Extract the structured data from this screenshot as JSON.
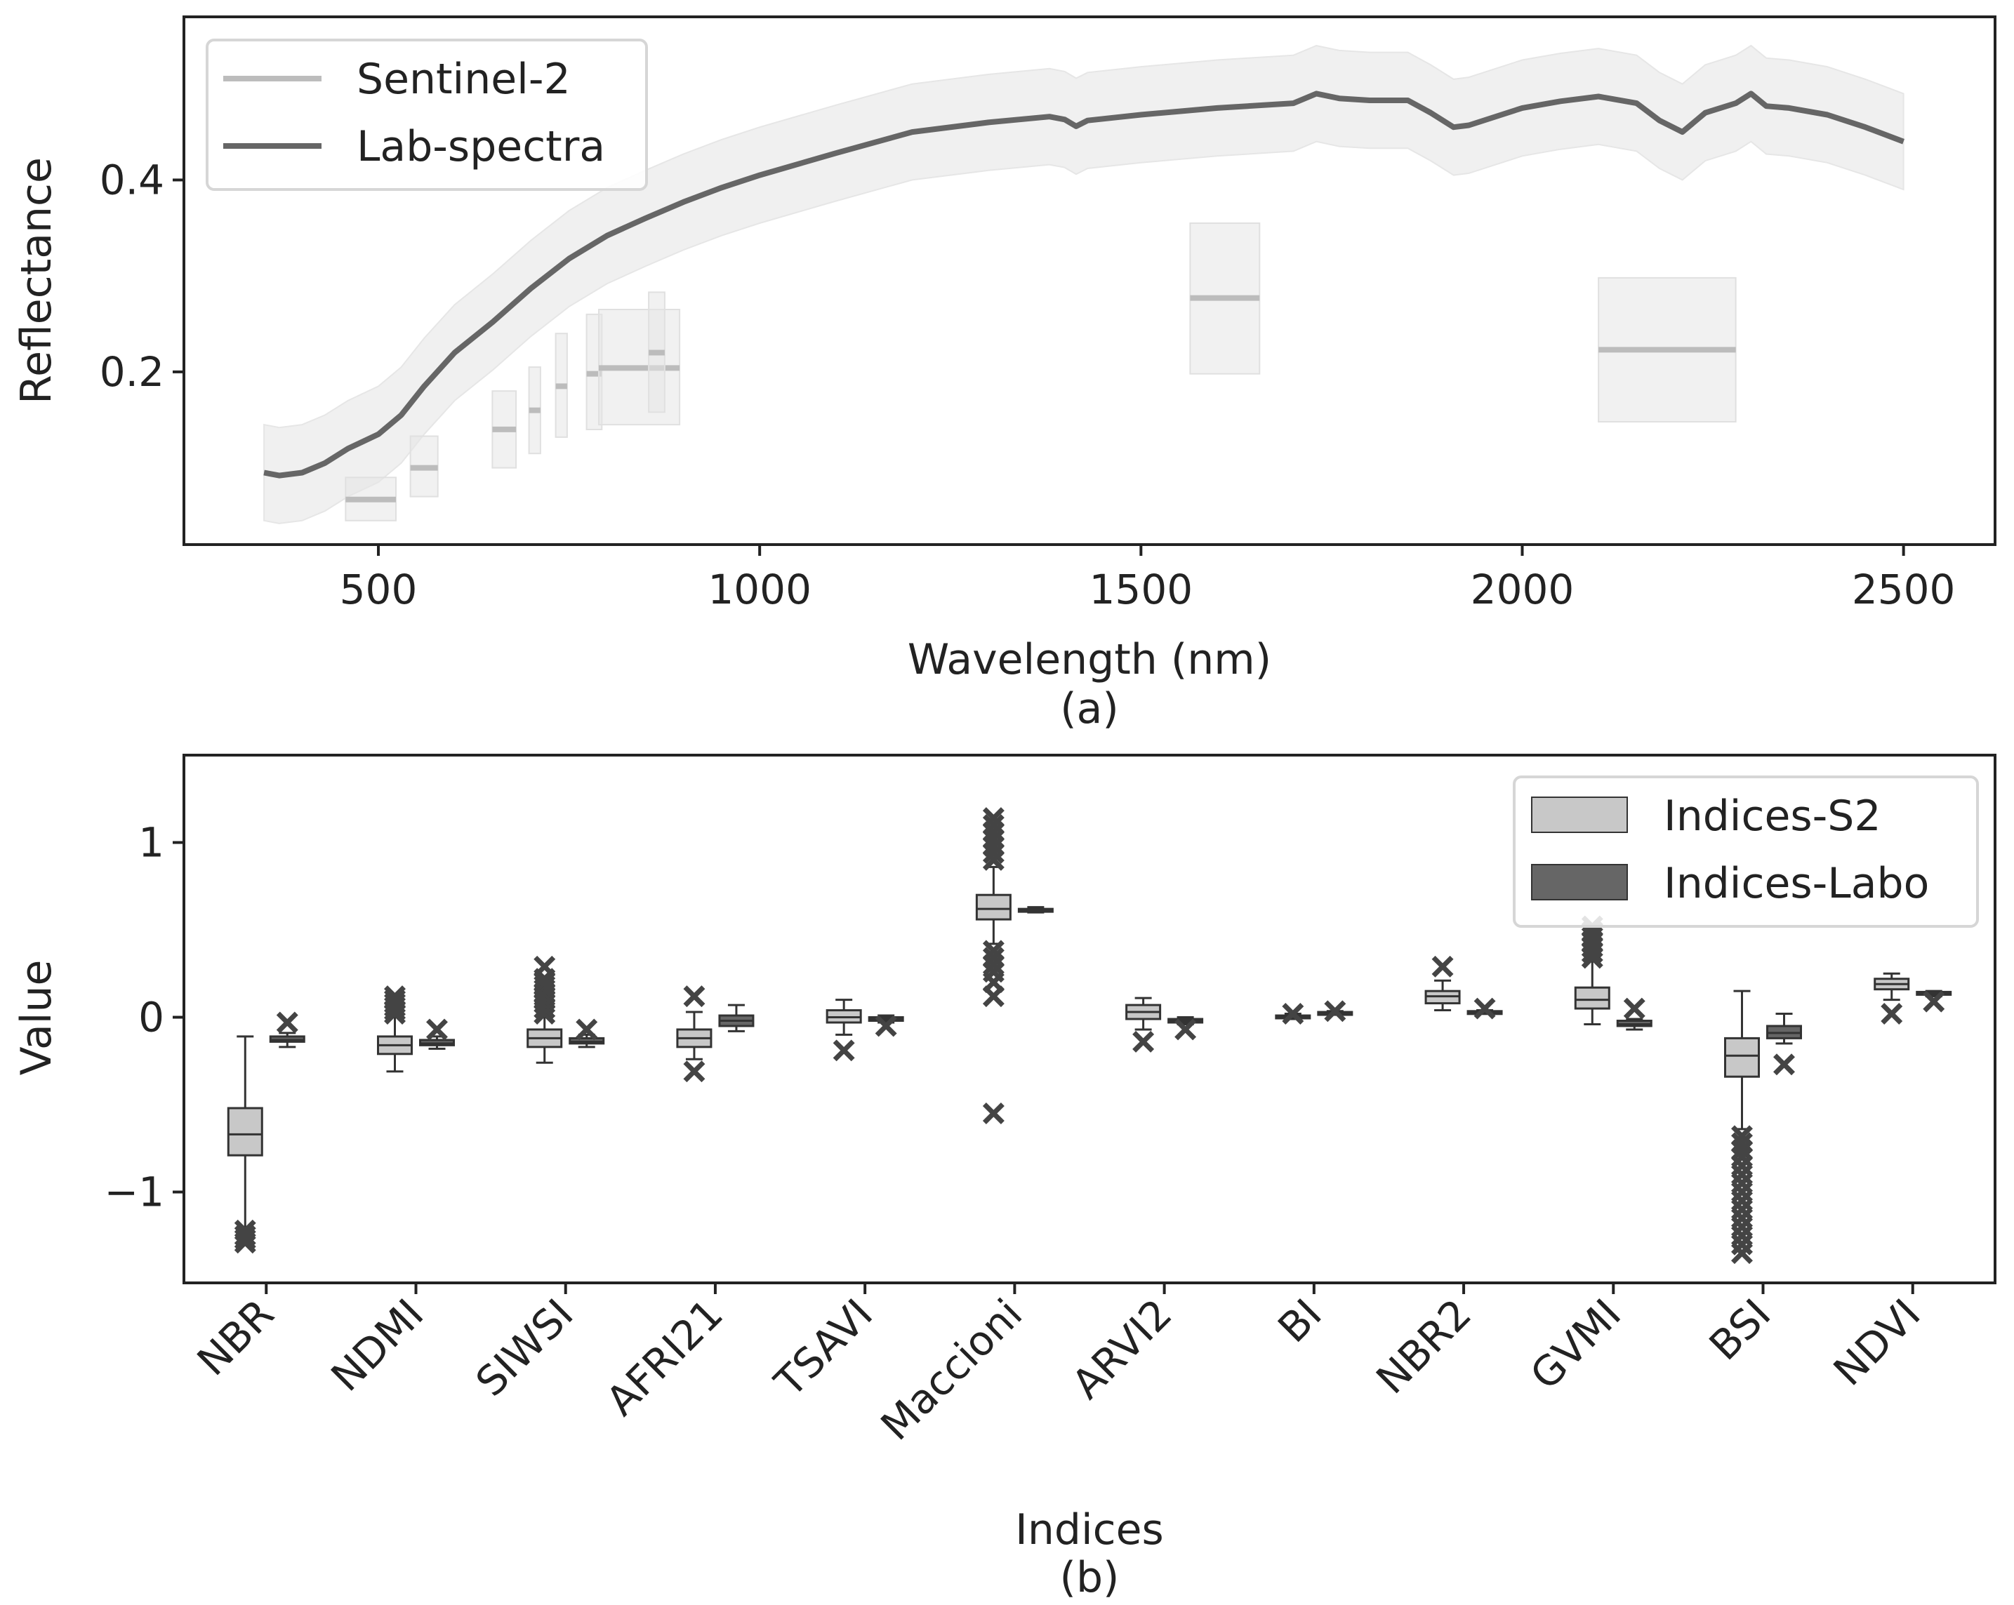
{
  "chart_data": [
    {
      "type": "line",
      "panel_label": "(a)",
      "xlabel": "Wavelength (nm)",
      "ylabel": "Reflectance",
      "xlim": [
        245,
        2620
      ],
      "ylim": [
        0.02,
        0.57
      ],
      "x_ticks": [
        500,
        1000,
        1500,
        2000,
        2500
      ],
      "x_tick_labels": [
        "500",
        "1000",
        "1500",
        "2000",
        "2500"
      ],
      "y_ticks": [
        0.2,
        0.4
      ],
      "y_tick_labels": [
        "0.2",
        "0.4"
      ],
      "legend": {
        "position": "top-left",
        "entries": [
          {
            "label": "Sentinel-2",
            "color": "#bcbcbc"
          },
          {
            "label": "Lab-spectra",
            "color": "#666666"
          }
        ]
      },
      "lab_spectra": {
        "name": "Lab-spectra",
        "color": "#666666",
        "band_color": "#f0f0f0",
        "band_halfwidth": 0.05,
        "x": [
          350,
          370,
          400,
          430,
          460,
          500,
          530,
          560,
          600,
          650,
          700,
          750,
          800,
          850,
          900,
          950,
          1000,
          1100,
          1200,
          1300,
          1380,
          1400,
          1415,
          1430,
          1500,
          1600,
          1700,
          1730,
          1760,
          1800,
          1850,
          1880,
          1910,
          1930,
          2000,
          2050,
          2100,
          2150,
          2180,
          2210,
          2240,
          2280,
          2300,
          2320,
          2350,
          2400,
          2450,
          2500
        ],
        "y": [
          0.095,
          0.092,
          0.095,
          0.105,
          0.12,
          0.135,
          0.155,
          0.185,
          0.22,
          0.252,
          0.287,
          0.318,
          0.342,
          0.36,
          0.377,
          0.392,
          0.405,
          0.428,
          0.45,
          0.46,
          0.466,
          0.463,
          0.456,
          0.462,
          0.468,
          0.475,
          0.48,
          0.49,
          0.485,
          0.483,
          0.483,
          0.47,
          0.455,
          0.457,
          0.475,
          0.482,
          0.487,
          0.48,
          0.462,
          0.45,
          0.47,
          0.48,
          0.49,
          0.477,
          0.475,
          0.468,
          0.455,
          0.44
        ]
      },
      "sentinel2": {
        "name": "Sentinel-2",
        "color": "#bcbcbc",
        "bands": [
          {
            "center": 490,
            "width": 66,
            "value": 0.067,
            "low": 0.045,
            "high": 0.09
          },
          {
            "center": 560,
            "width": 36,
            "value": 0.1,
            "low": 0.07,
            "high": 0.133
          },
          {
            "center": 665,
            "width": 31,
            "value": 0.14,
            "low": 0.1,
            "high": 0.18
          },
          {
            "center": 705,
            "width": 15,
            "value": 0.16,
            "low": 0.115,
            "high": 0.205
          },
          {
            "center": 740,
            "width": 15,
            "value": 0.185,
            "low": 0.132,
            "high": 0.24
          },
          {
            "center": 783,
            "width": 20,
            "value": 0.198,
            "low": 0.14,
            "high": 0.26
          },
          {
            "center": 842,
            "width": 106,
            "value": 0.204,
            "low": 0.145,
            "high": 0.265
          },
          {
            "center": 865,
            "width": 21,
            "value": 0.22,
            "low": 0.158,
            "high": 0.283
          },
          {
            "center": 1610,
            "width": 91,
            "value": 0.277,
            "low": 0.198,
            "high": 0.355
          },
          {
            "center": 2190,
            "width": 180,
            "value": 0.223,
            "low": 0.148,
            "high": 0.298
          }
        ]
      }
    },
    {
      "type": "box",
      "panel_label": "(b)",
      "xlabel": "Indices",
      "ylabel": "Value",
      "ylim": [
        -1.52,
        1.5
      ],
      "y_ticks": [
        -1,
        0,
        1
      ],
      "y_tick_labels": [
        "−1",
        "0",
        "1"
      ],
      "categories": [
        "NBR",
        "NDMI",
        "SIWSI",
        "AFRI21",
        "TSAVI",
        "Maccioni",
        "ARVI2",
        "BI",
        "NBR2",
        "GVMI",
        "BSI",
        "NDVI"
      ],
      "legend": {
        "position": "top-right",
        "entries": [
          {
            "label": "Indices-S2",
            "color": "#c8c8c8"
          },
          {
            "label": "Indices-Labo",
            "color": "#666666"
          }
        ]
      },
      "series": [
        {
          "name": "Indices-S2",
          "color": "#c8c8c8",
          "stats": [
            {
              "min": -1.2,
              "q1": -0.79,
              "median": -0.67,
              "q3": -0.52,
              "max": -0.11,
              "outliers": [
                -1.22,
                -1.25,
                -1.27,
                -1.29
              ]
            },
            {
              "min": -0.31,
              "q1": -0.21,
              "median": -0.16,
              "q3": -0.11,
              "max": 0.0,
              "outliers": [
                0.02,
                0.04,
                0.06,
                0.08,
                0.1,
                0.12
              ]
            },
            {
              "min": -0.26,
              "q1": -0.17,
              "median": -0.12,
              "q3": -0.07,
              "max": 0.0,
              "outliers": [
                0.02,
                0.05,
                0.08,
                0.1,
                0.12,
                0.14,
                0.16,
                0.18,
                0.2,
                0.22,
                0.29
              ]
            },
            {
              "min": -0.24,
              "q1": -0.17,
              "median": -0.12,
              "q3": -0.07,
              "max": 0.03,
              "outliers": [
                -0.31,
                0.12
              ]
            },
            {
              "min": -0.1,
              "q1": -0.03,
              "median": 0.0,
              "q3": 0.04,
              "max": 0.1,
              "outliers": [
                -0.19
              ]
            },
            {
              "min": 0.42,
              "q1": 0.56,
              "median": 0.62,
              "q3": 0.7,
              "max": 0.86,
              "outliers": [
                -0.55,
                0.12,
                0.2,
                0.26,
                0.3,
                0.34,
                0.38,
                0.9,
                0.94,
                0.98,
                1.02,
                1.06,
                1.1,
                1.14
              ]
            },
            {
              "min": -0.07,
              "q1": -0.01,
              "median": 0.03,
              "q3": 0.07,
              "max": 0.11,
              "outliers": [
                -0.14
              ]
            },
            {
              "min": -0.01,
              "q1": 0.0,
              "median": 0.005,
              "q3": 0.01,
              "max": 0.02,
              "outliers": [
                0.02
              ]
            },
            {
              "min": 0.04,
              "q1": 0.08,
              "median": 0.12,
              "q3": 0.15,
              "max": 0.21,
              "outliers": [
                0.29
              ]
            },
            {
              "min": -0.04,
              "q1": 0.05,
              "median": 0.1,
              "q3": 0.17,
              "max": 0.32,
              "outliers": [
                0.34,
                0.37,
                0.4,
                0.43,
                0.46,
                0.49,
                0.52
              ]
            },
            {
              "min": -0.64,
              "q1": -0.34,
              "median": -0.22,
              "q3": -0.12,
              "max": 0.15,
              "outliers": [
                -0.68,
                -0.72,
                -0.76,
                -0.8,
                -0.85,
                -0.9,
                -0.95,
                -1.0,
                -1.05,
                -1.1,
                -1.15,
                -1.2,
                -1.25,
                -1.3,
                -1.35
              ]
            },
            {
              "min": 0.1,
              "q1": 0.16,
              "median": 0.19,
              "q3": 0.22,
              "max": 0.25,
              "outliers": [
                0.02
              ]
            }
          ]
        },
        {
          "name": "Indices-Labo",
          "color": "#666666",
          "stats": [
            {
              "min": -0.17,
              "q1": -0.14,
              "median": -0.13,
              "q3": -0.11,
              "max": -0.09,
              "outliers": [
                -0.03
              ]
            },
            {
              "min": -0.18,
              "q1": -0.16,
              "median": -0.15,
              "q3": -0.13,
              "max": -0.11,
              "outliers": [
                -0.07
              ]
            },
            {
              "min": -0.17,
              "q1": -0.15,
              "median": -0.14,
              "q3": -0.12,
              "max": -0.1,
              "outliers": [
                -0.07
              ]
            },
            {
              "min": -0.08,
              "q1": -0.05,
              "median": -0.02,
              "q3": 0.01,
              "max": 0.07,
              "outliers": []
            },
            {
              "min": -0.03,
              "q1": -0.02,
              "median": -0.01,
              "q3": 0.0,
              "max": 0.01,
              "outliers": [
                -0.05
              ]
            },
            {
              "min": 0.6,
              "q1": 0.61,
              "median": 0.615,
              "q3": 0.62,
              "max": 0.63,
              "outliers": []
            },
            {
              "min": -0.04,
              "q1": -0.03,
              "median": -0.02,
              "q3": -0.01,
              "max": 0.0,
              "outliers": [
                -0.07
              ]
            },
            {
              "min": 0.015,
              "q1": 0.02,
              "median": 0.025,
              "q3": 0.03,
              "max": 0.035,
              "outliers": [
                0.035
              ]
            },
            {
              "min": 0.02,
              "q1": 0.025,
              "median": 0.03,
              "q3": 0.035,
              "max": 0.04,
              "outliers": [
                0.05
              ]
            },
            {
              "min": -0.07,
              "q1": -0.05,
              "median": -0.04,
              "q3": -0.02,
              "max": -0.01,
              "outliers": [
                0.05
              ]
            },
            {
              "min": -0.15,
              "q1": -0.12,
              "median": -0.09,
              "q3": -0.05,
              "max": 0.02,
              "outliers": [
                -0.27
              ]
            },
            {
              "min": 0.12,
              "q1": 0.13,
              "median": 0.14,
              "q3": 0.145,
              "max": 0.15,
              "outliers": [
                0.09
              ]
            }
          ]
        }
      ]
    }
  ]
}
